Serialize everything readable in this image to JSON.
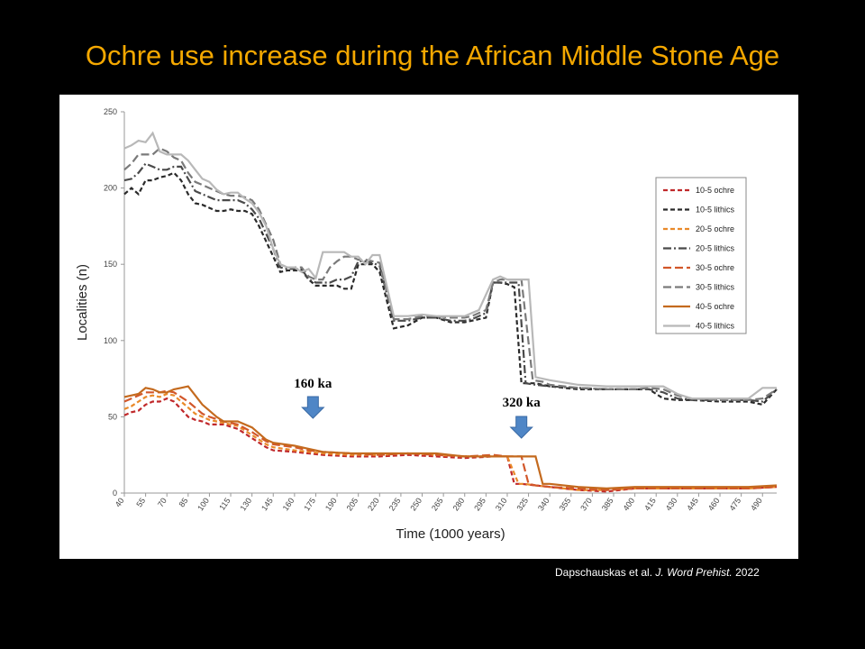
{
  "slide": {
    "title": "Ochre use increase during the African Middle Stone Age",
    "citation_authors": "Dapschauskas et al.",
    "citation_journal": "J. Word Prehist.",
    "citation_year": "2022"
  },
  "chart_data": {
    "type": "line",
    "title": "",
    "xlabel": "Time (1000 years)",
    "ylabel": "Localities (n)",
    "ylim": [
      0,
      250
    ],
    "yticks": [
      0,
      50,
      100,
      150,
      200,
      250
    ],
    "xlim": [
      40,
      500
    ],
    "xticks": [
      40,
      55,
      70,
      85,
      100,
      115,
      130,
      145,
      160,
      175,
      190,
      205,
      220,
      235,
      250,
      265,
      280,
      295,
      310,
      325,
      340,
      355,
      370,
      385,
      400,
      415,
      430,
      445,
      460,
      475,
      490
    ],
    "grid": false,
    "legend_position": "right",
    "annotations": [
      {
        "label": "160 ka",
        "x": 173
      },
      {
        "label": "320 ka",
        "x": 320
      }
    ],
    "series": [
      {
        "name": "10-5 ochre",
        "color": "#c0282a",
        "dash": "short",
        "x": [
          40,
          45,
          50,
          55,
          60,
          65,
          70,
          75,
          80,
          85,
          90,
          95,
          100,
          110,
          120,
          130,
          140,
          145,
          160,
          170,
          180,
          200,
          220,
          240,
          260,
          280,
          300,
          310,
          315,
          320,
          330,
          340,
          360,
          380,
          400,
          420,
          440,
          460,
          480,
          500
        ],
        "y": [
          51,
          53,
          54,
          58,
          60,
          60,
          62,
          60,
          55,
          50,
          48,
          47,
          45,
          45,
          42,
          36,
          30,
          28,
          27,
          26,
          25,
          24,
          24,
          25,
          24,
          23,
          24,
          24,
          6,
          6,
          5,
          4,
          2,
          1,
          3,
          3,
          3,
          3,
          3,
          4
        ]
      },
      {
        "name": "10-5 lithics",
        "color": "#2a2a2a",
        "dash": "short",
        "x": [
          40,
          45,
          50,
          55,
          60,
          65,
          70,
          75,
          80,
          85,
          90,
          95,
          100,
          105,
          110,
          115,
          120,
          125,
          130,
          135,
          140,
          145,
          150,
          155,
          160,
          165,
          170,
          175,
          180,
          185,
          190,
          195,
          200,
          205,
          210,
          215,
          220,
          230,
          240,
          250,
          260,
          270,
          280,
          285,
          290,
          295,
          300,
          305,
          310,
          315,
          320,
          330,
          340,
          360,
          380,
          400,
          410,
          420,
          430,
          440,
          460,
          470,
          480,
          490,
          500
        ],
        "y": [
          196,
          200,
          196,
          205,
          205,
          207,
          208,
          210,
          205,
          196,
          190,
          189,
          187,
          185,
          185,
          186,
          185,
          185,
          183,
          175,
          165,
          155,
          145,
          146,
          146,
          146,
          140,
          136,
          136,
          136,
          136,
          134,
          134,
          150,
          150,
          150,
          145,
          108,
          110,
          115,
          115,
          112,
          112,
          113,
          114,
          115,
          138,
          138,
          137,
          135,
          72,
          72,
          70,
          68,
          68,
          68,
          68,
          62,
          61,
          61,
          60,
          60,
          60,
          58,
          68
        ]
      },
      {
        "name": "20-5 ochre",
        "color": "#e98a2a",
        "dash": "short",
        "x": [
          40,
          45,
          50,
          55,
          60,
          65,
          70,
          75,
          80,
          85,
          90,
          95,
          100,
          110,
          120,
          130,
          140,
          145,
          160,
          170,
          180,
          200,
          220,
          240,
          260,
          280,
          300,
          310,
          318,
          322,
          330,
          340,
          360,
          380,
          400,
          420,
          440,
          460,
          480,
          500
        ],
        "y": [
          55,
          57,
          60,
          63,
          64,
          63,
          65,
          64,
          60,
          56,
          52,
          50,
          48,
          46,
          44,
          38,
          32,
          30,
          28,
          27,
          26,
          25,
          25,
          26,
          25,
          24,
          24,
          24,
          6,
          6,
          5,
          4,
          2,
          2,
          3,
          3,
          3,
          3,
          3,
          4
        ]
      },
      {
        "name": "20-5 lithics",
        "color": "#4a4a4a",
        "dash": "dashdot",
        "x": [
          40,
          45,
          50,
          55,
          60,
          65,
          70,
          75,
          80,
          85,
          90,
          95,
          100,
          105,
          110,
          115,
          120,
          125,
          130,
          135,
          140,
          145,
          150,
          155,
          160,
          165,
          170,
          175,
          180,
          185,
          190,
          195,
          200,
          205,
          210,
          215,
          220,
          230,
          240,
          250,
          260,
          270,
          280,
          285,
          290,
          295,
          300,
          305,
          310,
          318,
          323,
          330,
          340,
          360,
          380,
          400,
          410,
          420,
          430,
          440,
          460,
          470,
          480,
          490,
          500
        ],
        "y": [
          205,
          206,
          210,
          216,
          214,
          212,
          212,
          214,
          214,
          206,
          198,
          196,
          194,
          192,
          192,
          192,
          192,
          190,
          186,
          180,
          170,
          160,
          148,
          147,
          147,
          147,
          140,
          138,
          138,
          138,
          140,
          140,
          142,
          152,
          152,
          151,
          149,
          113,
          113,
          115,
          115,
          113,
          113,
          114,
          116,
          118,
          138,
          138,
          138,
          138,
          72,
          71,
          70,
          69,
          68,
          68,
          68,
          66,
          62,
          61,
          61,
          61,
          61,
          60,
          68
        ]
      },
      {
        "name": "30-5 ochre",
        "color": "#d2572a",
        "dash": "long",
        "x": [
          40,
          45,
          50,
          55,
          60,
          65,
          70,
          75,
          80,
          85,
          90,
          95,
          100,
          110,
          120,
          130,
          140,
          145,
          160,
          170,
          180,
          200,
          220,
          240,
          260,
          280,
          300,
          310,
          320,
          325,
          330,
          340,
          360,
          380,
          400,
          420,
          440,
          460,
          480,
          500
        ],
        "y": [
          60,
          62,
          64,
          66,
          66,
          66,
          67,
          66,
          63,
          60,
          56,
          52,
          50,
          47,
          45,
          40,
          34,
          32,
          30,
          28,
          27,
          26,
          25,
          26,
          25,
          24,
          25,
          24,
          24,
          6,
          5,
          4,
          3,
          2,
          3,
          3,
          3,
          3,
          3,
          4
        ]
      },
      {
        "name": "30-5 lithics",
        "color": "#7a7a7a",
        "dash": "long",
        "x": [
          40,
          45,
          50,
          55,
          60,
          65,
          70,
          75,
          80,
          85,
          90,
          95,
          100,
          105,
          110,
          115,
          120,
          125,
          130,
          135,
          140,
          145,
          150,
          155,
          160,
          165,
          170,
          175,
          180,
          185,
          190,
          195,
          200,
          205,
          210,
          215,
          220,
          230,
          240,
          250,
          260,
          270,
          280,
          285,
          290,
          295,
          300,
          305,
          310,
          320,
          328,
          335,
          340,
          360,
          380,
          400,
          410,
          420,
          430,
          440,
          460,
          470,
          480,
          490,
          500
        ],
        "y": [
          212,
          216,
          222,
          222,
          222,
          226,
          224,
          220,
          218,
          210,
          204,
          202,
          200,
          198,
          196,
          195,
          195,
          194,
          192,
          186,
          176,
          166,
          150,
          148,
          148,
          148,
          142,
          140,
          140,
          148,
          152,
          155,
          155,
          153,
          153,
          152,
          151,
          114,
          114,
          116,
          116,
          115,
          115,
          116,
          118,
          120,
          138,
          140,
          140,
          140,
          74,
          73,
          71,
          69,
          68,
          68,
          69,
          68,
          64,
          62,
          61,
          61,
          61,
          62,
          68
        ]
      },
      {
        "name": "40-5 ochre",
        "color": "#c46a1e",
        "dash": "solid",
        "x": [
          40,
          45,
          50,
          55,
          60,
          65,
          70,
          75,
          80,
          85,
          90,
          95,
          100,
          105,
          110,
          120,
          130,
          140,
          145,
          160,
          170,
          180,
          200,
          220,
          240,
          260,
          280,
          300,
          320,
          330,
          335,
          340,
          360,
          380,
          400,
          420,
          440,
          460,
          480,
          500
        ],
        "y": [
          63,
          64,
          65,
          69,
          68,
          66,
          66,
          68,
          69,
          70,
          64,
          58,
          54,
          50,
          47,
          47,
          43,
          35,
          33,
          31,
          29,
          27,
          26,
          26,
          26,
          26,
          24,
          24,
          24,
          24,
          6,
          6,
          4,
          3,
          4,
          4,
          4,
          4,
          4,
          5
        ]
      },
      {
        "name": "40-5 lithics",
        "color": "#b8b8b8",
        "dash": "solid",
        "x": [
          40,
          45,
          50,
          55,
          60,
          65,
          70,
          75,
          80,
          85,
          90,
          95,
          100,
          105,
          110,
          115,
          120,
          125,
          130,
          135,
          140,
          145,
          150,
          155,
          160,
          165,
          170,
          175,
          180,
          185,
          190,
          195,
          200,
          205,
          210,
          215,
          220,
          230,
          240,
          250,
          260,
          270,
          280,
          285,
          290,
          295,
          300,
          305,
          310,
          320,
          325,
          330,
          340,
          360,
          380,
          400,
          410,
          420,
          430,
          440,
          460,
          470,
          480,
          490,
          500
        ],
        "y": [
          226,
          228,
          231,
          230,
          236,
          224,
          222,
          222,
          222,
          218,
          212,
          206,
          204,
          199,
          196,
          197,
          197,
          193,
          190,
          184,
          175,
          160,
          150,
          148,
          148,
          145,
          147,
          141,
          158,
          158,
          158,
          158,
          155,
          155,
          150,
          156,
          156,
          116,
          116,
          117,
          116,
          116,
          116,
          118,
          120,
          130,
          140,
          142,
          140,
          140,
          140,
          76,
          74,
          71,
          70,
          70,
          70,
          70,
          65,
          62,
          62,
          62,
          62,
          69,
          69
        ]
      }
    ]
  }
}
